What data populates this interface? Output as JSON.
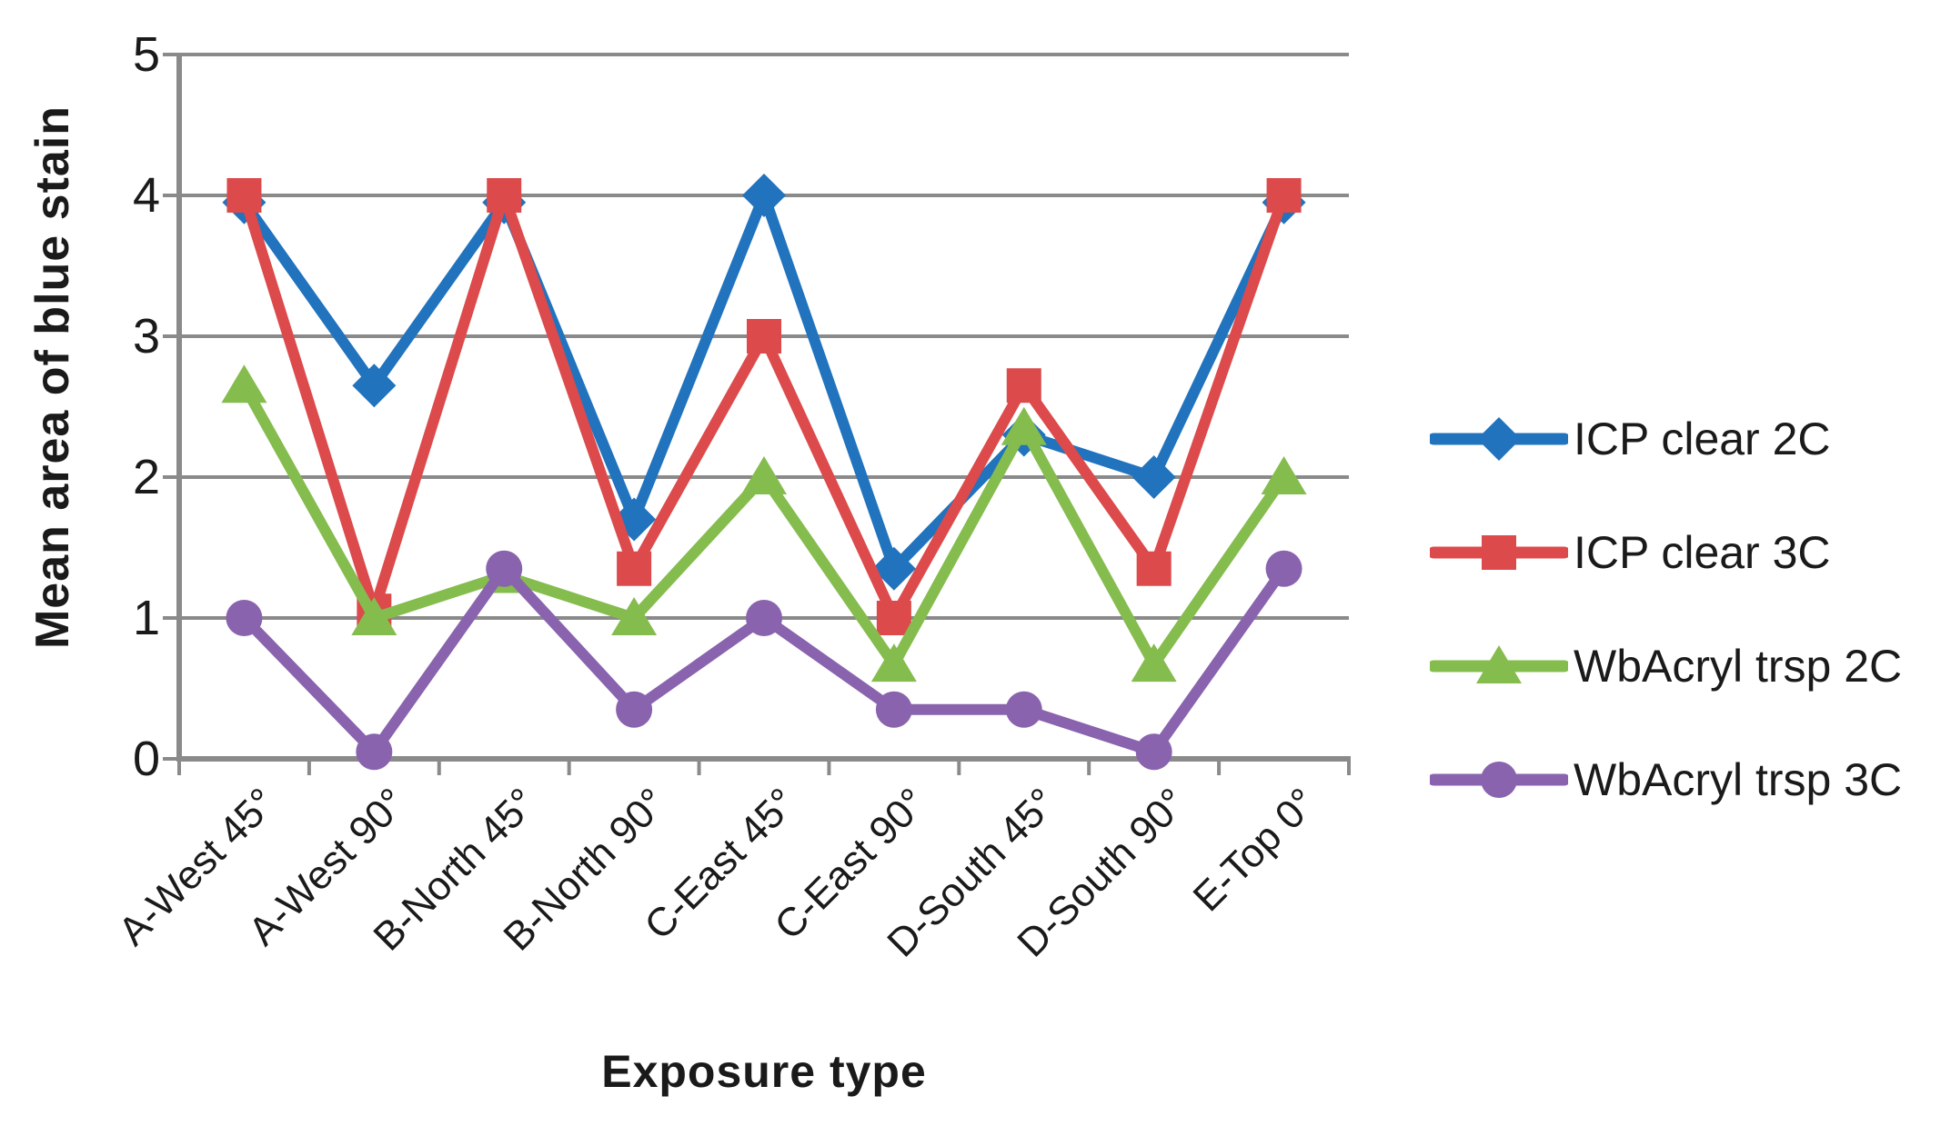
{
  "chart_data": {
    "type": "line",
    "title": "",
    "xlabel": "Exposure type",
    "ylabel": "Mean area of blue stain",
    "categories": [
      "A-West 45°",
      "A-West 90°",
      "B-North 45°",
      "B-North 90°",
      "C-East 45°",
      "C-East 90°",
      "D-South 45°",
      "D-South 90°",
      "E-Top 0°"
    ],
    "ylim": [
      0,
      5
    ],
    "ytick_labels": [
      "5",
      "4",
      "3",
      "2",
      "1",
      "0"
    ],
    "grid": true,
    "axis_color": "#8a8a8a",
    "legend_position": "right",
    "series": [
      {
        "name": "ICP clear 2C",
        "marker": "diamond",
        "color": "#2173be",
        "values": [
          3.95,
          2.65,
          3.95,
          1.7,
          4,
          1.35,
          2.3,
          2,
          3.95
        ]
      },
      {
        "name": "ICP clear 3C",
        "marker": "square",
        "color": "#dc4a4c",
        "values": [
          4,
          1.05,
          4,
          1.35,
          3,
          1,
          2.65,
          1.35,
          4
        ]
      },
      {
        "name": "WbAcryl trsp 2C",
        "marker": "triangle",
        "color": "#85bc4e",
        "values": [
          2.65,
          1,
          1.3,
          1,
          2,
          0.67,
          2.35,
          0.67,
          2
        ]
      },
      {
        "name": "WbAcryl trsp 3C",
        "marker": "circle",
        "color": "#8a63ae",
        "values": [
          1,
          0.05,
          1.35,
          0.35,
          1,
          0.35,
          0.35,
          0.05,
          1.35
        ]
      }
    ]
  }
}
